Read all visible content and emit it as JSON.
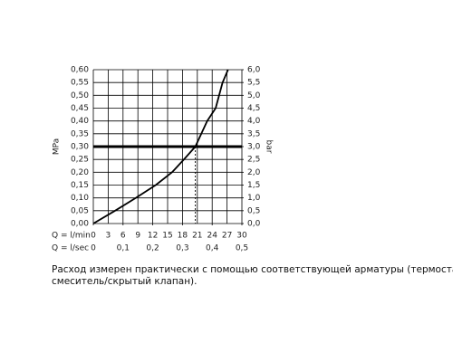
{
  "chart_data": {
    "type": "line",
    "ylabel": "MPa",
    "y2label": "bar",
    "xlabel": "Q = l/min",
    "x2label": "Q = l/sec",
    "series": [
      {
        "color": "#000000",
        "x": [
          0,
          4.4,
          8.6,
          12.6,
          15.9,
          18.3,
          20.6,
          23,
          24.7,
          26.1,
          27.2
        ],
        "values": [
          0,
          0.05,
          0.1,
          0.15,
          0.2,
          0.25,
          0.3,
          0.4,
          0.45,
          0.55,
          0.6
        ]
      }
    ],
    "xlim": [
      0,
      30
    ],
    "xticks": [
      0,
      3,
      6,
      9,
      12,
      15,
      18,
      21,
      24,
      27,
      30
    ],
    "x2lim": [
      0,
      0.5
    ],
    "x2ticks": [
      0,
      {
        "value": 0.1,
        "label": "0,1"
      },
      {
        "value": 0.2,
        "label": "0,2"
      },
      {
        "value": 0.3,
        "label": "0,3"
      },
      {
        "value": 0.4,
        "label": "0,4"
      },
      {
        "value": 0.5,
        "label": "0,5"
      }
    ],
    "ylim": [
      0,
      0.6
    ],
    "yticks": [
      {
        "value": 0,
        "label": "0,00"
      },
      {
        "value": 0.05,
        "label": "0,05"
      },
      {
        "value": 0.1,
        "label": "0,10"
      },
      {
        "value": 0.15,
        "label": "0,15"
      },
      {
        "value": 0.2,
        "label": "0,20"
      },
      {
        "value": 0.25,
        "label": "0,25"
      },
      {
        "value": 0.3,
        "label": "0,30"
      },
      {
        "value": 0.35,
        "label": "0,35"
      },
      {
        "value": 0.4,
        "label": "0,40"
      },
      {
        "value": 0.45,
        "label": "0,45"
      },
      {
        "value": 0.5,
        "label": "0,50"
      },
      {
        "value": 0.55,
        "label": "0,55"
      },
      {
        "value": 0.6,
        "label": "0,60"
      }
    ],
    "y2lim": [
      0,
      6
    ],
    "y2ticks": [
      {
        "value": 0,
        "label": "0,0"
      },
      {
        "value": 0.5,
        "label": "0,5"
      },
      {
        "value": 1,
        "label": "1,0"
      },
      {
        "value": 1.5,
        "label": "1,5"
      },
      {
        "value": 2,
        "label": "2,0"
      },
      {
        "value": 2.5,
        "label": "2,5"
      },
      {
        "value": 3,
        "label": "3,0"
      },
      {
        "value": 3.5,
        "label": "3,5"
      },
      {
        "value": 4,
        "label": "4,0"
      },
      {
        "value": 4.5,
        "label": "4,5"
      },
      {
        "value": 5,
        "label": "5,0"
      },
      {
        "value": 5.5,
        "label": "5,5"
      },
      {
        "value": 6,
        "label": "6,0"
      }
    ],
    "grid": true,
    "reference": {
      "x": 20.6,
      "y": 0.3
    },
    "caption_lines": [
      "Расход измерен практически с помощью соответствующей арматуры (термостат/",
      "смеситель/скрытый клапан)."
    ]
  }
}
